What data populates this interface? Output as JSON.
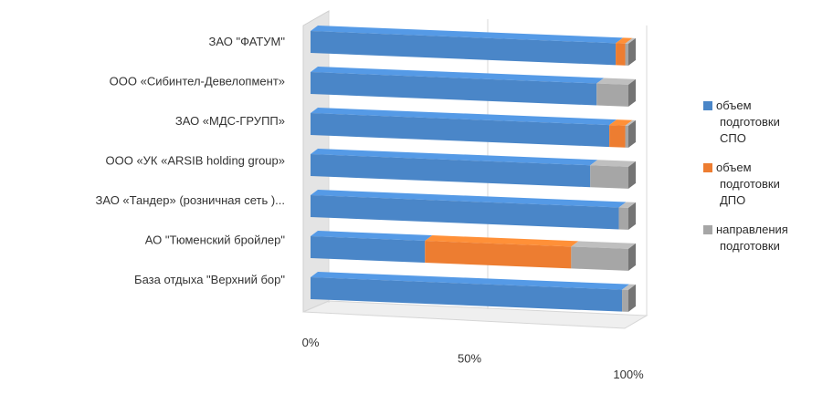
{
  "chart_data": {
    "type": "bar",
    "orientation": "horizontal",
    "stacked": "percent",
    "style": "3d",
    "categories": [
      "ЗАО \"ФАТУМ\"",
      "ООО «Сибинтел-Девелопмент»",
      "ЗАО «МДС-ГРУПП»",
      "ООО «УК «ARSIB holding group»",
      "ЗАО «Тандер» (розничная сеть )...",
      "АО \"Тюменский бройлер\"",
      "База отдыха \"Верхний бор\""
    ],
    "series": [
      {
        "name": "объем подготовки СПО",
        "color": "#4a86c8",
        "values": [
          96,
          90,
          94,
          88,
          97,
          36,
          98
        ]
      },
      {
        "name": "объем подготовки ДПО",
        "color": "#ed7d31",
        "values": [
          3,
          0,
          5,
          0,
          0,
          46,
          0
        ]
      },
      {
        "name": "направления подготовки",
        "color": "#a6a6a6",
        "values": [
          1,
          10,
          1,
          12,
          3,
          18,
          2
        ]
      }
    ],
    "x_ticks": [
      "0%",
      "50%",
      "100%"
    ],
    "xlim": [
      0,
      100
    ],
    "legend_position": "right",
    "legend_lines": [
      [
        "объем",
        "подготовки",
        "СПО"
      ],
      [
        "объем",
        "подготовки",
        "ДПО"
      ],
      [
        "направления",
        "подготовки"
      ]
    ],
    "grid": true
  }
}
